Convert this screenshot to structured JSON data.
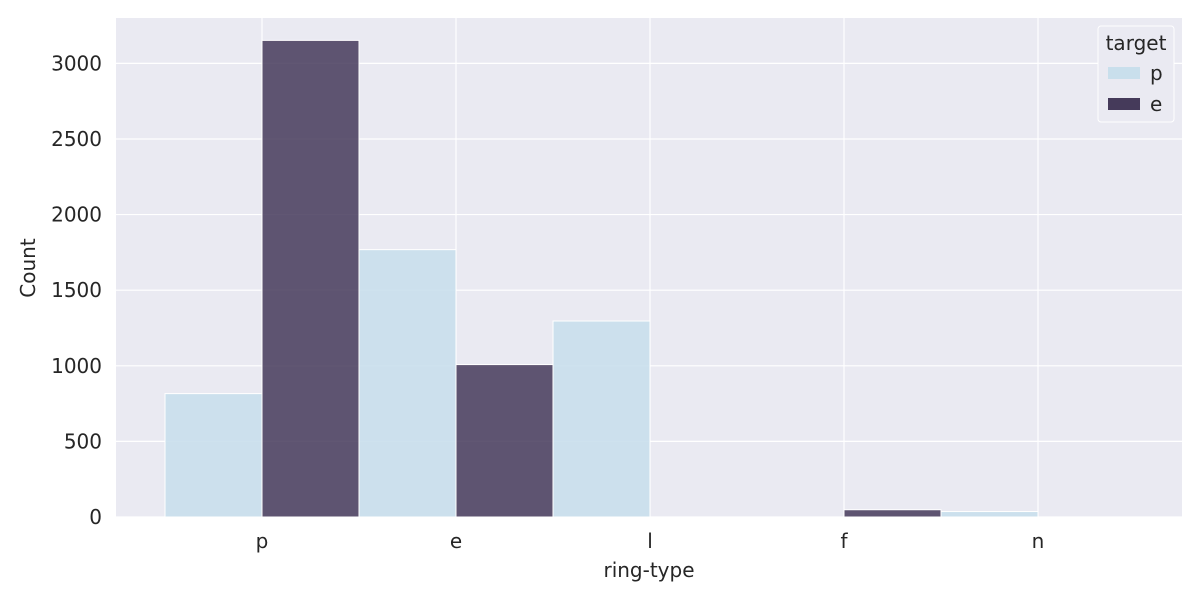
{
  "chart_data": {
    "type": "bar",
    "xlabel": "ring-type",
    "ylabel": "Count",
    "categories": [
      "p",
      "e",
      "l",
      "f",
      "n"
    ],
    "series": [
      {
        "name": "p",
        "values": [
          816,
          1768,
          1296,
          0,
          36
        ]
      },
      {
        "name": "e",
        "values": [
          3152,
          1008,
          0,
          48,
          0
        ]
      }
    ],
    "ylim": [
      0,
      3300
    ],
    "yticks": [
      0,
      500,
      1000,
      1500,
      2000,
      2500,
      3000
    ],
    "grid": true,
    "legend": {
      "title": "target",
      "placement": "top-right"
    },
    "colors": {
      "p": "#c9dfec",
      "e": "#453a5a",
      "background": "#eaeaf2",
      "grid": "#ffffff"
    }
  }
}
